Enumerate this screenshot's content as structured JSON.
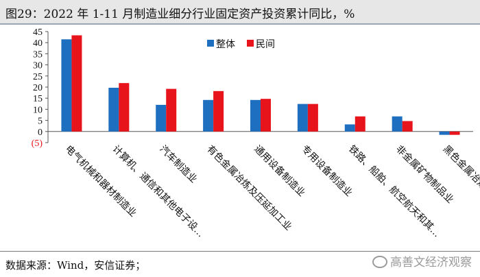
{
  "header": {
    "title": "图29：2022 年 1-11 月制造业细分行业固定资产投资累计同比，%"
  },
  "footer": {
    "source": "数据来源：Wind，安信证券；",
    "watermark": "高善文经济观察"
  },
  "chart_data": {
    "type": "bar",
    "categories": [
      "电气机械和器材制造业",
      "计算机、通信和其他电子设…",
      "汽车制造业",
      "有色金属冶炼及压延加工业",
      "通用设备制造业",
      "专用设备制造业",
      "铁路、船舶、航空航天和其…",
      "非金属矿物制品业",
      "黑色金属冶炼及压延加工业"
    ],
    "series": [
      {
        "name": "整体",
        "color": "#1f6fc0",
        "values": [
          41.5,
          19.7,
          12.0,
          14.2,
          14.2,
          12.4,
          3.2,
          6.8,
          -1.5
        ]
      },
      {
        "name": "民间",
        "color": "#e8141b",
        "values": [
          43.3,
          21.8,
          19.2,
          18.2,
          14.7,
          12.4,
          6.8,
          4.7,
          -1.5
        ]
      }
    ],
    "ylim": [
      -5,
      45
    ],
    "yticks": [
      -5,
      0,
      5,
      10,
      15,
      20,
      25,
      30,
      35,
      40,
      45
    ],
    "ytick_labels": [
      "(5)",
      "0",
      "5",
      "10",
      "15",
      "20",
      "25",
      "30",
      "35",
      "40",
      "45"
    ],
    "negative_tick_color": "#e8141b",
    "legend_position": "top-center",
    "grid": false
  }
}
